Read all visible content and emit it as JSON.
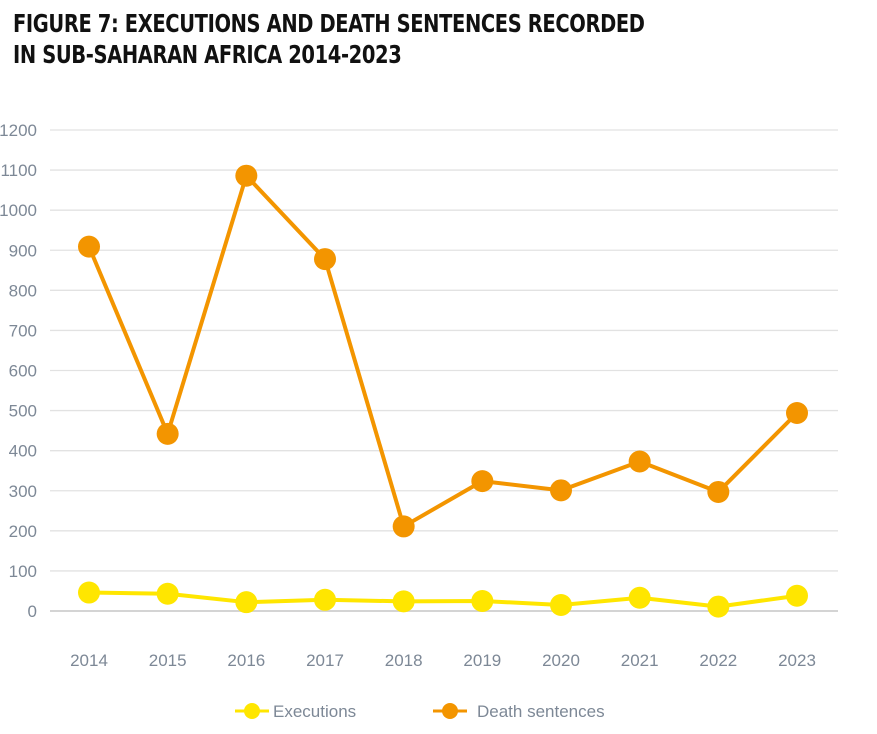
{
  "title_lines": [
    "FIGURE 7: EXECUTIONS AND DEATH SENTENCES RECORDED",
    "IN SUB-SAHARAN AFRICA 2014-2023"
  ],
  "chart_data": {
    "type": "line",
    "title": "FIGURE 7: EXECUTIONS AND DEATH SENTENCES RECORDED IN SUB-SAHARAN AFRICA 2014-2023",
    "xlabel": "",
    "ylabel": "",
    "x": [
      "2014",
      "2015",
      "2016",
      "2017",
      "2018",
      "2019",
      "2020",
      "2021",
      "2022",
      "2023"
    ],
    "ylim": [
      0,
      1200
    ],
    "yticks": [
      0,
      100,
      200,
      300,
      400,
      500,
      600,
      700,
      800,
      900,
      1000,
      1100,
      1200
    ],
    "grid": true,
    "legend_position": "bottom-center",
    "series": [
      {
        "name": "Executions",
        "color": "#ffe600",
        "values": [
          46,
          43,
          22,
          28,
          24,
          25,
          15,
          33,
          11,
          38
        ]
      },
      {
        "name": "Death sentences",
        "color": "#f39500",
        "values": [
          909,
          442,
          1086,
          878,
          211,
          324,
          301,
          373,
          297,
          494
        ]
      }
    ]
  }
}
